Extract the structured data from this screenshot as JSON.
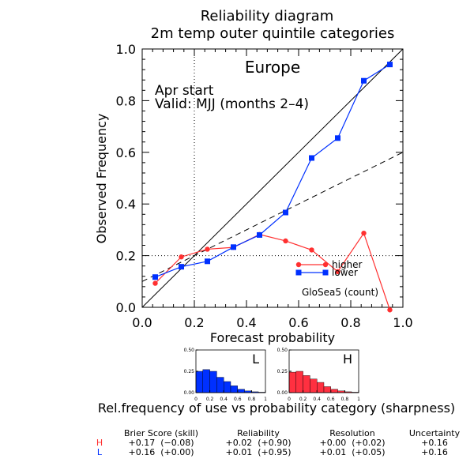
{
  "title_line1": "Reliability diagram",
  "title_line2": "2m temp outer quintile categories",
  "region": "Europe",
  "start_text": "Apr start",
  "valid_text": "Valid: MJJ (months 2–4)",
  "model_text": "GloSea5 (count)",
  "chart_data": {
    "type": "line",
    "xlabel": "Forecast probability",
    "ylabel": "Observed Frequency",
    "xlim": [
      0.0,
      1.0
    ],
    "ylim": [
      0.0,
      1.0
    ],
    "x_ticks": [
      "0.0",
      "0.2",
      "0.4",
      "0.6",
      "0.8",
      "1.0"
    ],
    "y_ticks": [
      "0.0",
      "0.2",
      "0.4",
      "0.6",
      "0.8",
      "1.0"
    ],
    "climatology_x": 0.2,
    "climatology_y": 0.2,
    "skill_line": [
      [
        0.0,
        0.1
      ],
      [
        1.0,
        0.6
      ]
    ],
    "series": [
      {
        "name": "higher",
        "color": "#ff3030",
        "marker": "circle",
        "x": [
          0.05,
          0.15,
          0.25,
          0.35,
          0.45,
          0.55,
          0.65,
          0.75,
          0.85,
          0.95
        ],
        "y": [
          0.093,
          0.195,
          0.225,
          0.232,
          0.282,
          0.257,
          0.222,
          0.138,
          0.287,
          -0.01
        ]
      },
      {
        "name": "lower",
        "color": "#0030ff",
        "marker": "square",
        "x": [
          0.05,
          0.15,
          0.25,
          0.35,
          0.45,
          0.55,
          0.65,
          0.75,
          0.85,
          0.95
        ],
        "y": [
          0.117,
          0.157,
          0.178,
          0.233,
          0.28,
          0.367,
          0.578,
          0.655,
          0.877,
          0.94
        ]
      }
    ],
    "sharpness": {
      "caption": "Rel.frequency of use vs probability category (sharpness)",
      "x_ticks": [
        "0",
        "0.2",
        "0.4",
        "0.6",
        "0.8",
        "1"
      ],
      "y_ticks": [
        "0.00",
        "0.25",
        "0.50"
      ],
      "ylim": [
        0,
        0.5
      ],
      "panels": [
        {
          "label": "L",
          "color": "#0030ff",
          "values": [
            0.25,
            0.27,
            0.25,
            0.18,
            0.13,
            0.08,
            0.04,
            0.02,
            0.01,
            0.005
          ]
        },
        {
          "label": "H",
          "color": "#ff3040",
          "values": [
            0.24,
            0.25,
            0.2,
            0.16,
            0.12,
            0.07,
            0.04,
            0.02,
            0.01,
            0.005
          ]
        }
      ]
    },
    "scores_table": {
      "headers": [
        "Brier Score (skill)",
        "Reliability",
        "Resolution",
        "Uncertainty"
      ],
      "rows": [
        {
          "label": "H",
          "color": "#ff3030",
          "cells": [
            "+0.17  (−0.08)",
            "+0.02  (+0.90)",
            "+0.00  (+0.02)",
            "+0.16"
          ]
        },
        {
          "label": "L",
          "color": "#0030ff",
          "cells": [
            "+0.16  (+0.00)",
            "+0.01  (+0.95)",
            "+0.01  (+0.05)",
            "+0.16"
          ]
        }
      ]
    }
  }
}
